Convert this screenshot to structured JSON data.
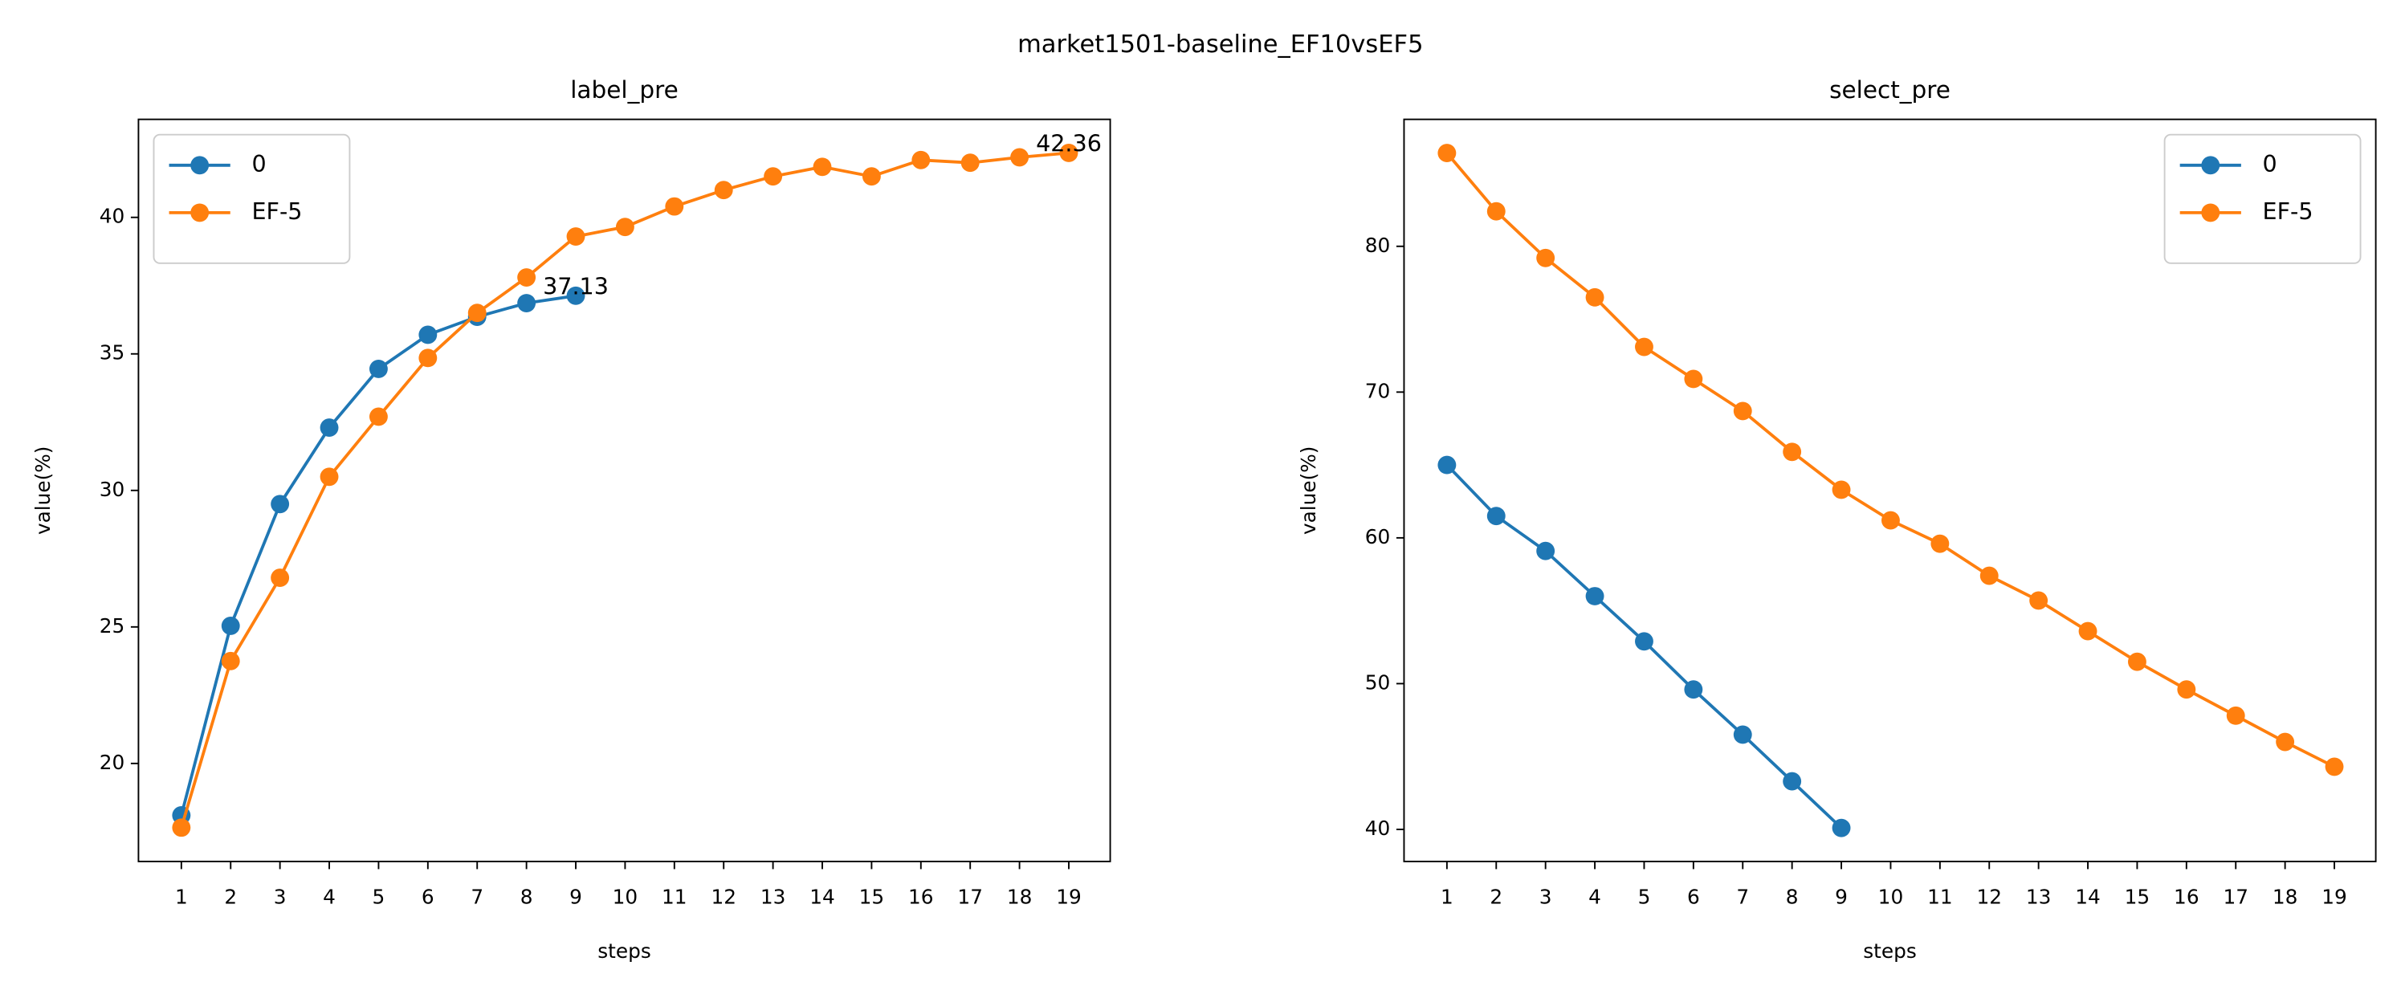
{
  "title": "market1501-baseline_EF10vsEF5",
  "chart_data": [
    {
      "type": "line",
      "title": "label_pre",
      "x_label": "steps",
      "y_label": "value(%)",
      "x": [
        1,
        2,
        3,
        4,
        5,
        6,
        7,
        8,
        9,
        10,
        11,
        12,
        13,
        14,
        15,
        16,
        17,
        18,
        19
      ],
      "series": [
        {
          "name": "0",
          "color": "#1f77b4",
          "values": [
            18.1,
            25.04,
            29.5,
            32.3,
            34.45,
            35.7,
            36.36,
            36.86,
            37.13,
            null,
            null,
            null,
            null,
            null,
            null,
            null,
            null,
            null,
            null
          ]
        },
        {
          "name": "EF-5",
          "color": "#ff7f0e",
          "values": [
            17.65,
            23.75,
            26.8,
            30.5,
            32.7,
            34.85,
            36.5,
            37.8,
            39.3,
            39.65,
            40.4,
            41.0,
            41.5,
            41.85,
            41.5,
            42.1,
            42.0,
            42.2,
            42.36
          ]
        }
      ],
      "xlim": [
        0.13,
        19.84
      ],
      "xticks": [
        1,
        2,
        3,
        4,
        5,
        6,
        7,
        8,
        9,
        10,
        11,
        12,
        13,
        14,
        15,
        16,
        17,
        18,
        19
      ],
      "ylim": [
        16.41,
        43.59
      ],
      "yticks": [
        20,
        25,
        30,
        35,
        40
      ],
      "annotate_last": true,
      "legend": "upper left",
      "grid": false
    },
    {
      "type": "line",
      "title": "select_pre",
      "x_label": "steps",
      "y_label": "value(%)",
      "x": [
        1,
        2,
        3,
        4,
        5,
        6,
        7,
        8,
        9,
        10,
        11,
        12,
        13,
        14,
        15,
        16,
        17,
        18,
        19
      ],
      "series": [
        {
          "name": "0",
          "color": "#1f77b4",
          "values": [
            65.0,
            61.5,
            59.1,
            56.0,
            52.9,
            49.6,
            46.5,
            43.3,
            40.1,
            null,
            null,
            null,
            null,
            null,
            null,
            null,
            null,
            null,
            null
          ]
        },
        {
          "name": "EF-5",
          "color": "#ff7f0e",
          "values": [
            86.4,
            82.4,
            79.2,
            76.5,
            73.1,
            70.9,
            68.7,
            65.9,
            63.3,
            61.2,
            59.6,
            57.4,
            55.7,
            53.6,
            51.5,
            49.6,
            47.8,
            46.0,
            44.3
          ]
        }
      ],
      "xlim": [
        0.13,
        19.84
      ],
      "xticks": [
        1,
        2,
        3,
        4,
        5,
        6,
        7,
        8,
        9,
        10,
        11,
        12,
        13,
        14,
        15,
        16,
        17,
        18,
        19
      ],
      "ylim": [
        37.8,
        88.71
      ],
      "yticks": [
        40,
        50,
        60,
        70,
        80
      ],
      "annotate_last": false,
      "legend": "upper right",
      "grid": false
    }
  ]
}
